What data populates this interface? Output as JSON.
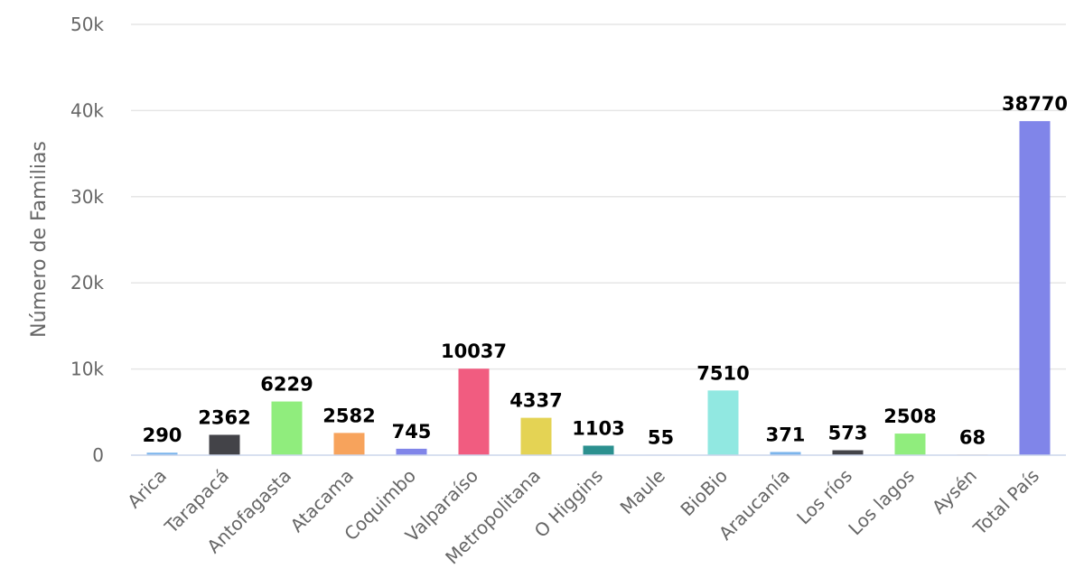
{
  "chart_data": {
    "type": "bar",
    "title": "",
    "xlabel": "",
    "ylabel": "Número de Familias",
    "categories": [
      "Arica",
      "Tarapacá",
      "Antofagasta",
      "Atacama",
      "Coquimbo",
      "Valparaíso",
      "Metropolitana",
      "O Higgins",
      "Maule",
      "BioBio",
      "Araucanía",
      "Los ríos",
      "Los lagos",
      "Aysén",
      "Total País"
    ],
    "values": [
      290,
      2362,
      6229,
      2582,
      745,
      10037,
      4337,
      1103,
      55,
      7510,
      371,
      573,
      2508,
      68,
      38770
    ],
    "colors": [
      "#7cb5ec",
      "#434348",
      "#90ed7d",
      "#f7a35c",
      "#8085e9",
      "#f15c80",
      "#e4d354",
      "#2b908f",
      "#f45b5b",
      "#91e8e1",
      "#7cb5ec",
      "#434348",
      "#90ed7d",
      "#f7a35c",
      "#8085e9"
    ],
    "ylim": [
      0,
      50000
    ],
    "yticks": [
      {
        "value": 0,
        "label": "0"
      },
      {
        "value": 10000,
        "label": "10k"
      },
      {
        "value": 20000,
        "label": "20k"
      },
      {
        "value": 30000,
        "label": "30k"
      },
      {
        "value": 40000,
        "label": "40k"
      },
      {
        "value": 50000,
        "label": "50k"
      }
    ],
    "grid": true,
    "legend": "none",
    "data_labels": true
  }
}
